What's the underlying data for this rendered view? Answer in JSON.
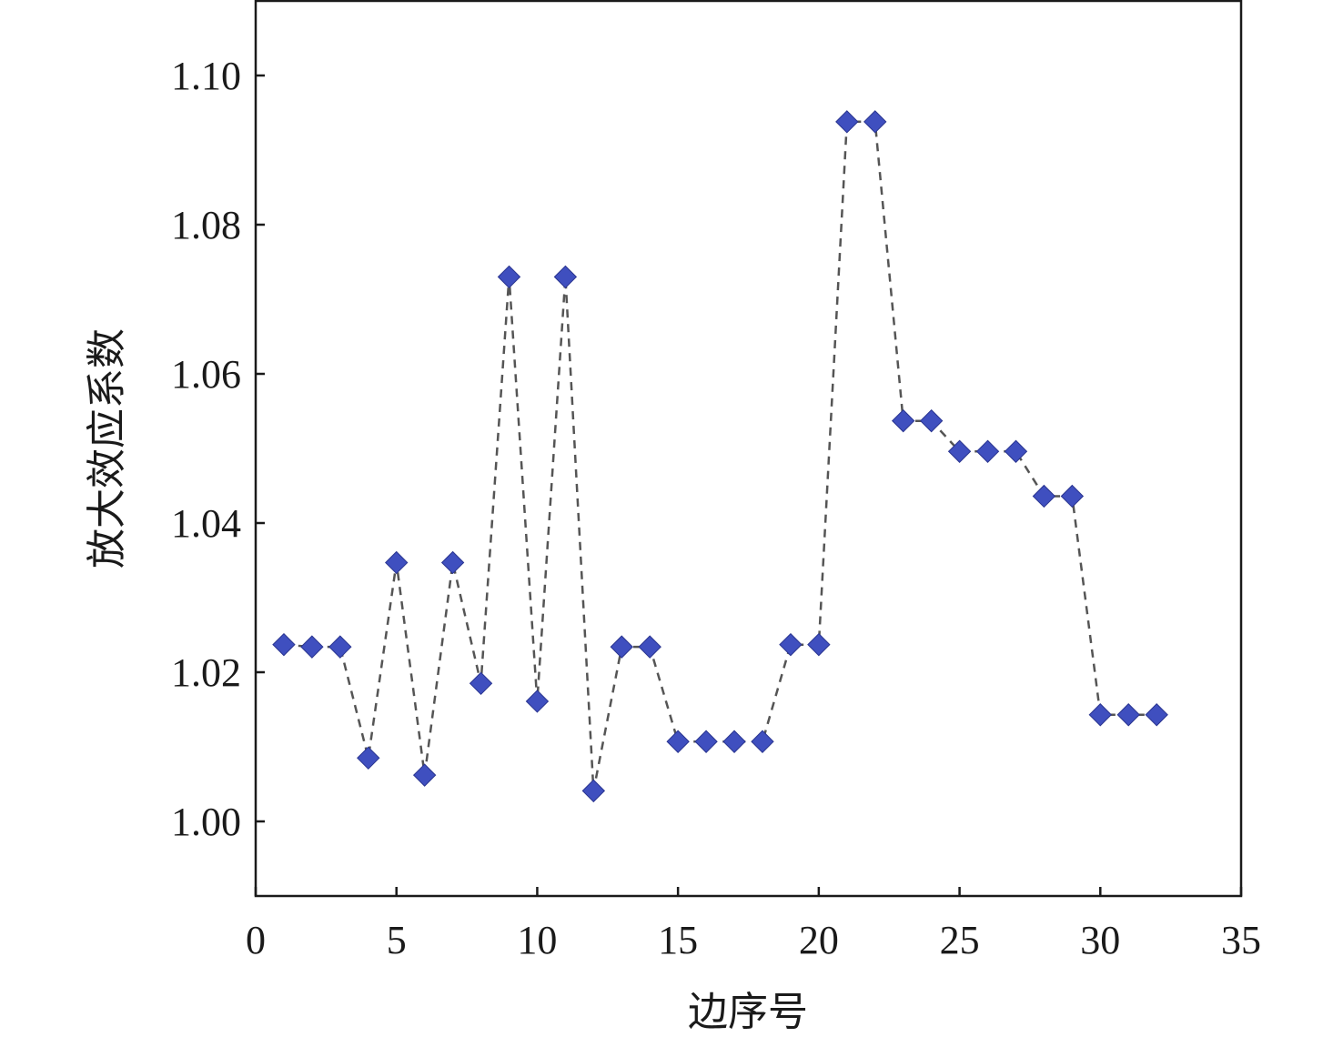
{
  "chart_data": {
    "type": "line",
    "title": "",
    "xlabel": "边序号",
    "ylabel": "放大效应系数",
    "xlim": [
      0,
      35
    ],
    "ylim": [
      0.99,
      1.11
    ],
    "x_ticks": [
      "0",
      "5",
      "10",
      "15",
      "20",
      "25",
      "30",
      "35"
    ],
    "y_ticks": [
      "1.00",
      "1.02",
      "1.04",
      "1.06",
      "1.08",
      "1.10"
    ],
    "grid": false,
    "legend": "none",
    "marker": "diamond",
    "line_style": "dashed",
    "marker_color": "#3f4fbf",
    "line_color": "#555555",
    "series": [
      {
        "x": [
          1,
          2,
          3,
          4,
          5,
          6,
          7,
          8,
          9,
          10,
          11,
          12,
          13,
          14,
          15,
          16,
          17,
          18,
          19,
          20,
          21,
          22,
          23,
          24,
          25,
          26,
          27,
          28,
          29,
          30,
          31,
          32
        ],
        "values": [
          1.0237,
          1.0234,
          1.0234,
          1.0085,
          1.0347,
          1.0062,
          1.0347,
          1.0185,
          1.073,
          1.0161,
          1.073,
          1.0041,
          1.0234,
          1.0234,
          1.0107,
          1.0107,
          1.0107,
          1.0107,
          1.0237,
          1.0237,
          1.0938,
          1.0938,
          1.0537,
          1.0537,
          1.0496,
          1.0496,
          1.0496,
          1.0436,
          1.0436,
          1.0143,
          1.0143,
          1.0143
        ]
      }
    ]
  }
}
